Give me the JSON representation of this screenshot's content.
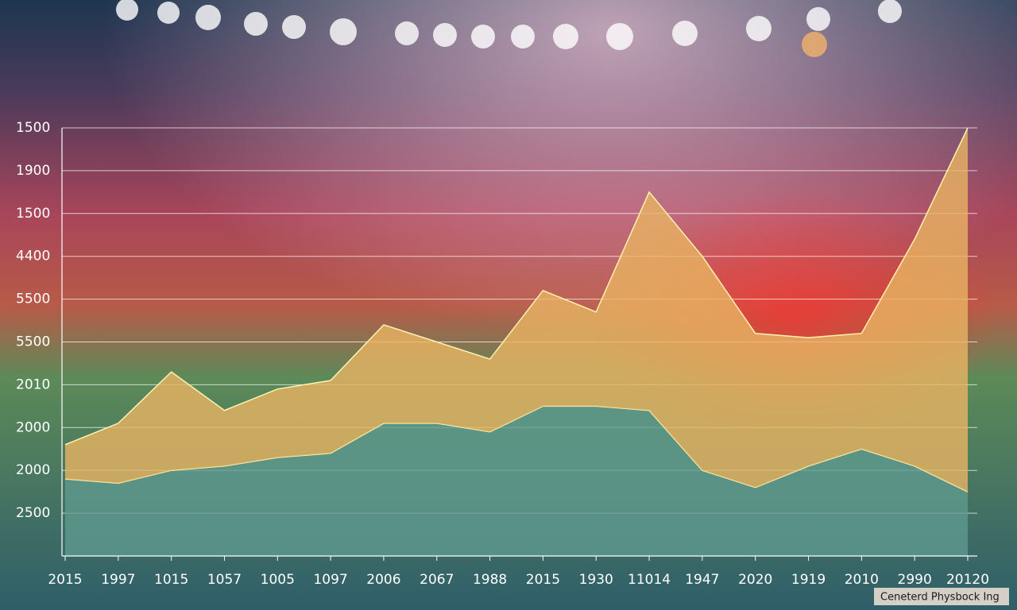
{
  "chart_data": {
    "type": "stacked-area",
    "caption": "Ceneterd Physbock Ing",
    "categories": [
      "2015",
      "1997",
      "1015",
      "1057",
      "1005",
      "1097",
      "2006",
      "2067",
      "1988",
      "2015",
      "1930",
      "11014",
      "1947",
      "2020",
      "1919",
      "2010",
      "2990",
      "20120"
    ],
    "series": [
      {
        "color": "#5f9a8e",
        "values": [
          1.8,
          1.7,
          2.0,
          2.1,
          2.3,
          2.4,
          3.1,
          3.1,
          2.9,
          3.5,
          3.5,
          3.4,
          2.0,
          1.6,
          2.1,
          2.5,
          2.1,
          1.5
        ]
      },
      {
        "color": "#e9b463",
        "values": [
          0.8,
          1.4,
          2.3,
          1.3,
          1.6,
          1.7,
          2.3,
          1.9,
          1.7,
          2.7,
          2.2,
          5.1,
          5.0,
          3.6,
          3.0,
          2.7,
          5.3,
          8.5
        ]
      }
    ],
    "ylim": [
      0,
      10
    ],
    "yticks": [
      {
        "value": 10,
        "label": "1500"
      },
      {
        "value": 9,
        "label": "1900"
      },
      {
        "value": 8,
        "label": "1500"
      },
      {
        "value": 7,
        "label": "4400"
      },
      {
        "value": 6,
        "label": "5500"
      },
      {
        "value": 5,
        "label": "5500"
      },
      {
        "value": 4,
        "label": "2010"
      },
      {
        "value": 3,
        "label": "2000"
      },
      {
        "value": 2,
        "label": "2000"
      },
      {
        "value": 1,
        "label": "2500"
      }
    ],
    "grid": true
  }
}
